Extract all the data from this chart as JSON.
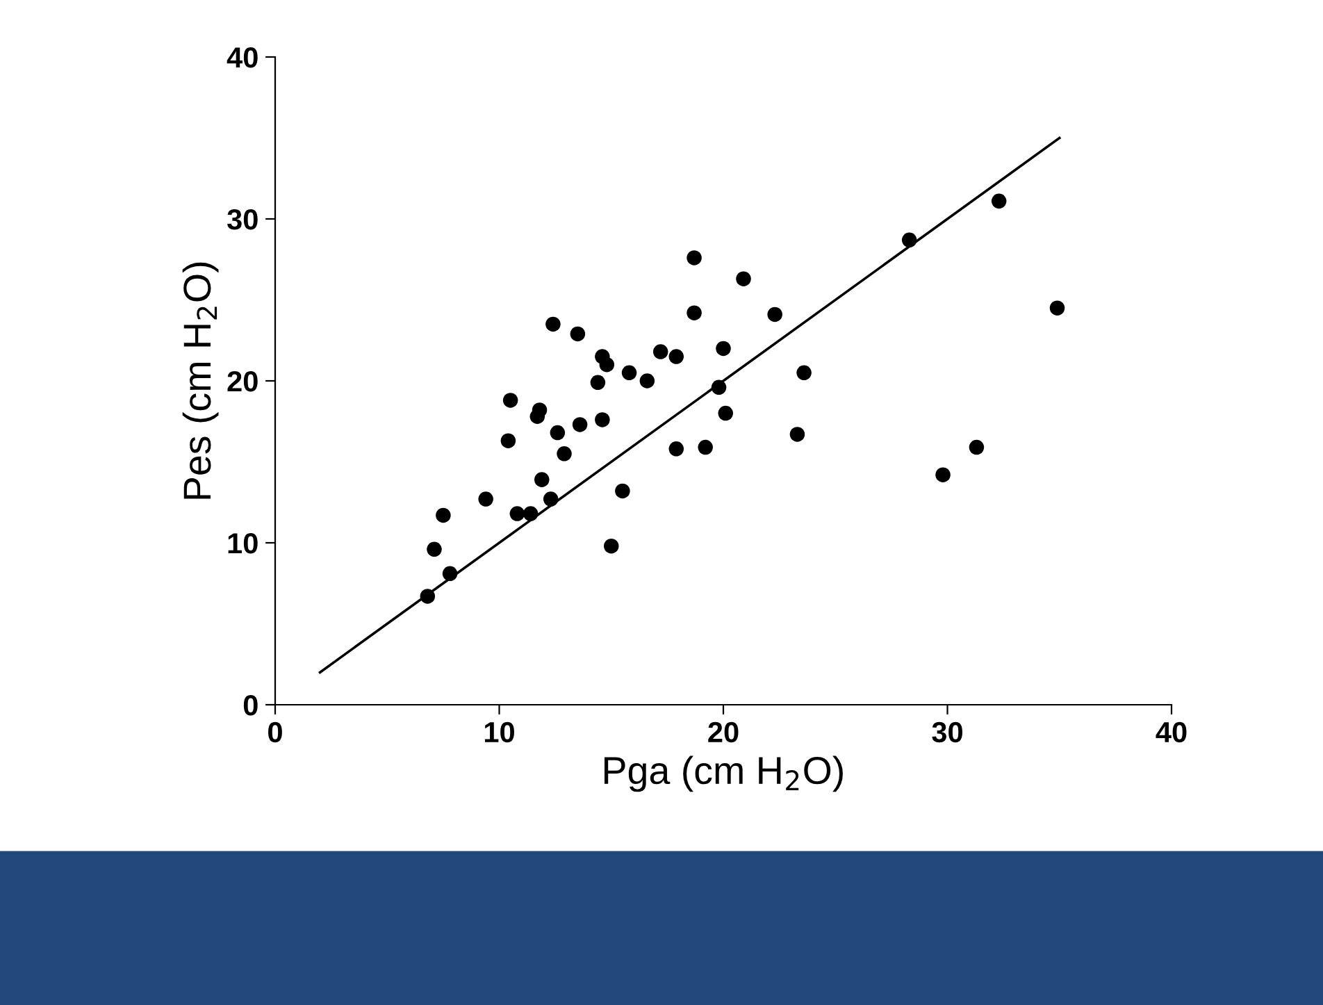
{
  "chart_data": {
    "type": "scatter",
    "xlabel": "Pga (cm H$_{2}$O)",
    "ylabel": "Pes (cm H$_{2}$O)",
    "xlim": [
      0,
      40
    ],
    "ylim": [
      0,
      40
    ],
    "xticks": [
      0,
      10,
      20,
      30,
      40
    ],
    "yticks": [
      0,
      10,
      20,
      30,
      40
    ],
    "grid": false,
    "series": [
      {
        "marker": "circle",
        "color": "#000000",
        "x": [
          6.8,
          7.1,
          7.5,
          7.8,
          9.4,
          10.4,
          10.5,
          10.8,
          11.4,
          11.7,
          11.8,
          11.9,
          12.3,
          12.4,
          12.6,
          12.9,
          13.5,
          13.6,
          14.4,
          14.6,
          14.6,
          14.8,
          15.0,
          15.5,
          15.8,
          16.6,
          17.2,
          17.9,
          17.9,
          18.7,
          18.7,
          19.2,
          19.8,
          20.0,
          20.1,
          20.9,
          22.3,
          23.3,
          23.6,
          28.3,
          29.8,
          31.3,
          32.3,
          34.9
        ],
        "values": [
          6.7,
          9.6,
          11.7,
          8.1,
          12.7,
          16.3,
          18.8,
          11.8,
          11.8,
          17.8,
          18.2,
          13.9,
          12.7,
          23.5,
          16.8,
          15.5,
          22.9,
          17.3,
          19.9,
          17.6,
          21.5,
          21.0,
          9.8,
          13.2,
          20.5,
          20.0,
          21.8,
          21.5,
          15.8,
          27.6,
          24.2,
          15.9,
          19.6,
          22.0,
          18.0,
          26.3,
          24.1,
          16.7,
          20.5,
          28.7,
          14.2,
          15.9,
          31.1,
          24.5
        ]
      },
      {
        "type": "line",
        "color": "#000000",
        "x": [
          2,
          35
        ],
        "values": [
          2,
          35
        ]
      }
    ]
  }
}
